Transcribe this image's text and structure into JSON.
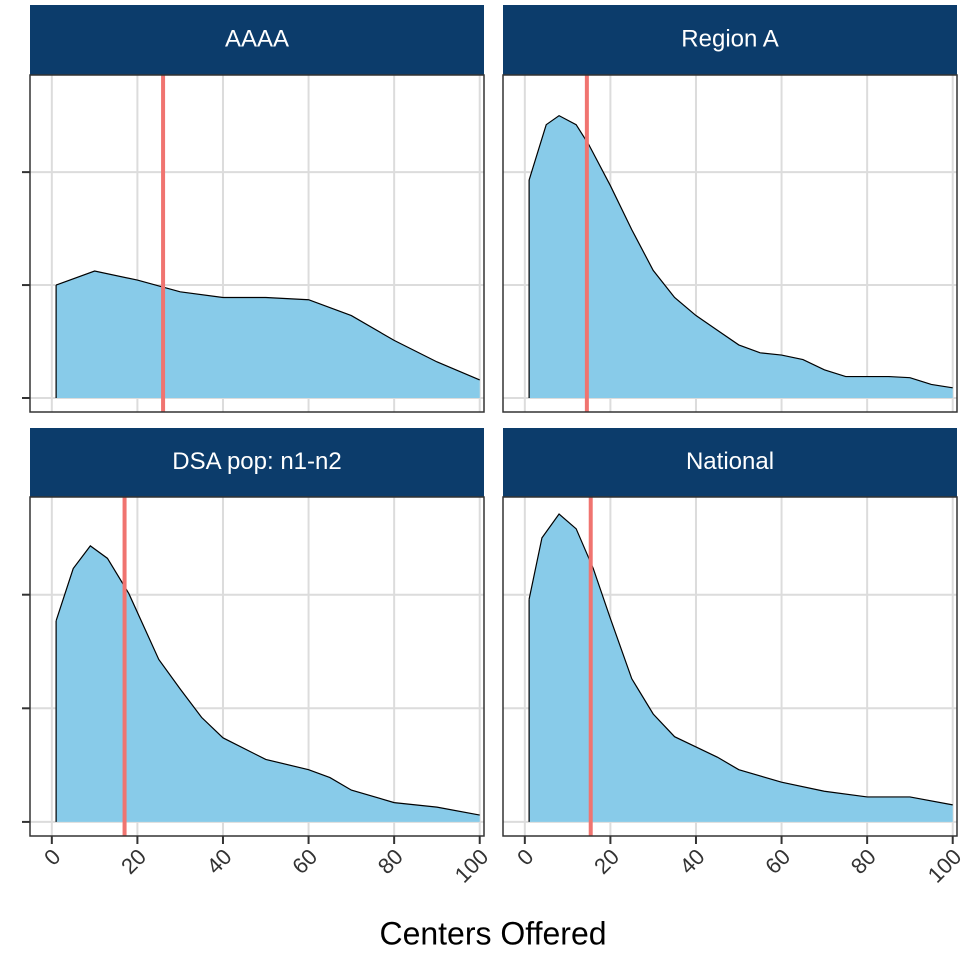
{
  "xlabel": "Centers Offered",
  "chart_data": [
    {
      "type": "area",
      "title": "AAAA",
      "color": "#88cbe9",
      "reference_line": 26,
      "reference_color": "#f07470",
      "x": [
        1,
        10,
        20,
        30,
        40,
        50,
        60,
        70,
        80,
        90,
        100
      ],
      "values": [
        0.01,
        0.01124,
        0.01044,
        0.0094,
        0.0089,
        0.0089,
        0.0087,
        0.0073,
        0.0051,
        0.0032,
        0.0016
      ],
      "xlim": [
        -5.1,
        101
      ],
      "xticks": [
        0,
        20,
        40,
        60,
        80,
        100
      ],
      "ylim": [
        -0.00124,
        0.0286
      ],
      "yticks": [
        0,
        0.01,
        0.02
      ],
      "grid": true
    },
    {
      "type": "area",
      "title": "Region A",
      "color": "#88cbe9",
      "reference_line": 14.5,
      "reference_color": "#f07470",
      "x": [
        1,
        5,
        8,
        12,
        15,
        20,
        25,
        30,
        35,
        40,
        45,
        50,
        55,
        60,
        65,
        70,
        75,
        80,
        85,
        90,
        95,
        100
      ],
      "values": [
        0.0193,
        0.0242,
        0.025,
        0.0242,
        0.0224,
        0.0188,
        0.0149,
        0.0113,
        0.0089,
        0.0073,
        0.006,
        0.0047,
        0.004,
        0.0038,
        0.0034,
        0.0025,
        0.0019,
        0.0019,
        0.0019,
        0.0018,
        0.0012,
        0.0009
      ],
      "xlim": [
        -5.1,
        101
      ],
      "xticks": [
        0,
        20,
        40,
        60,
        80,
        100
      ],
      "ylim": [
        -0.00124,
        0.0286
      ],
      "yticks": [
        0,
        0.01,
        0.02
      ],
      "grid": true
    },
    {
      "type": "area",
      "title": "DSA pop: n1-n2",
      "color": "#88cbe9",
      "reference_line": 17,
      "reference_color": "#f07470",
      "x": [
        1,
        5,
        9,
        13,
        18,
        25,
        30,
        35,
        40,
        50,
        60,
        65,
        70,
        80,
        90,
        100
      ],
      "values": [
        0.0177,
        0.0223,
        0.0243,
        0.0232,
        0.0201,
        0.0143,
        0.0117,
        0.0092,
        0.0074,
        0.0055,
        0.0046,
        0.0039,
        0.0028,
        0.0017,
        0.0013,
        0.0006
      ],
      "xlim": [
        -5.1,
        101
      ],
      "xticks": [
        0,
        20,
        40,
        60,
        80,
        100
      ],
      "ylim": [
        -0.00124,
        0.0286
      ],
      "yticks": [
        0,
        0.01,
        0.02
      ],
      "grid": true
    },
    {
      "type": "area",
      "title": "National",
      "color": "#88cbe9",
      "reference_line": 15.4,
      "reference_color": "#f07470",
      "x": [
        1,
        4,
        8,
        12,
        16,
        20,
        25,
        30,
        35,
        40,
        45,
        50,
        60,
        70,
        80,
        90,
        100
      ],
      "values": [
        0.0196,
        0.025,
        0.0271,
        0.0258,
        0.0223,
        0.0179,
        0.0126,
        0.0095,
        0.0075,
        0.0066,
        0.0057,
        0.0046,
        0.0035,
        0.0027,
        0.0022,
        0.0022,
        0.0015
      ],
      "xlim": [
        -5.1,
        101
      ],
      "xticks": [
        0,
        20,
        40,
        60,
        80,
        100
      ],
      "ylim": [
        -0.00124,
        0.0286
      ],
      "yticks": [
        0,
        0.01,
        0.02
      ],
      "grid": true
    }
  ]
}
